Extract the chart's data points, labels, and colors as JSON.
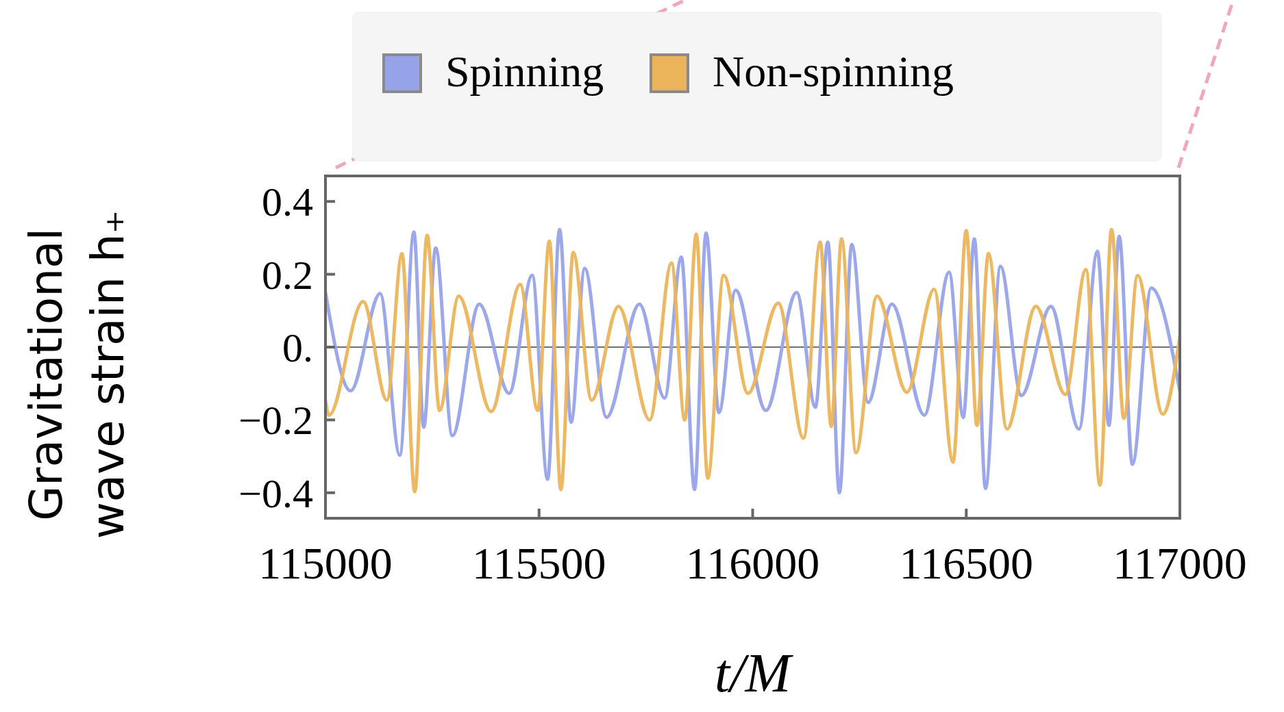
{
  "chart_data": {
    "type": "line",
    "xlabel": "t/M",
    "ylabel": "Gravitational wave strain h₊",
    "legend": "top",
    "grid": false,
    "marker": "none",
    "line_style": "solid",
    "xlim": [
      115000,
      117000
    ],
    "xticks": [
      115000,
      115500,
      116000,
      116500,
      117000
    ],
    "ylim": [
      -0.47,
      0.47
    ],
    "yticks": [
      {
        "value": -0.4,
        "label": "−0.4"
      },
      {
        "value": -0.2,
        "label": "−0.2"
      },
      {
        "value": 0,
        "label": "0."
      },
      0.2,
      0.4
    ],
    "ref_lines": [
      {
        "axis": "y",
        "value": 0,
        "color": "#707070"
      }
    ],
    "series": [
      {
        "name": "Spinning",
        "color": "#97a3e8",
        "x": [
          115000,
          115059,
          115128,
          115174,
          115207,
          115230,
          115258,
          115297,
          115360,
          115430,
          115484,
          115520,
          115548,
          115575,
          115607,
          115658,
          115735,
          115794,
          115833,
          115864,
          115891,
          115921,
          115960,
          116031,
          116103,
          116147,
          116176,
          116203,
          116232,
          116270,
          116326,
          116402,
          116460,
          116493,
          116519,
          116545,
          116580,
          116629,
          116698,
          116764,
          116807,
          116834,
          116858,
          116889,
          116933,
          117000
        ],
        "values": [
          0.15,
          -0.12,
          0.147,
          -0.297,
          0.316,
          -0.22,
          0.272,
          -0.243,
          0.118,
          -0.127,
          0.197,
          -0.363,
          0.323,
          -0.206,
          0.216,
          -0.193,
          0.118,
          -0.14,
          0.247,
          -0.391,
          0.313,
          -0.18,
          0.156,
          -0.174,
          0.15,
          -0.165,
          0.288,
          -0.4,
          0.282,
          -0.152,
          0.118,
          -0.187,
          0.206,
          -0.193,
          0.297,
          -0.388,
          0.222,
          -0.133,
          0.112,
          -0.225,
          0.263,
          -0.215,
          0.304,
          -0.322,
          0.162,
          -0.121
        ]
      },
      {
        "name": "Non-spinning",
        "color": "#ecb45a",
        "x": [
          115000,
          115008,
          115088,
          115144,
          115179,
          115209,
          115238,
          115267,
          115312,
          115388,
          115456,
          115497,
          115524,
          115551,
          115580,
          115623,
          115686,
          115759,
          115810,
          115841,
          115868,
          115895,
          115932,
          115989,
          116060,
          116119,
          116158,
          116184,
          116208,
          116242,
          116291,
          116361,
          116425,
          116469,
          116500,
          116525,
          116552,
          116595,
          116663,
          116732,
          116780,
          116813,
          116840,
          116869,
          116901,
          116960,
          117000
        ],
        "values": [
          -0.146,
          -0.187,
          0.125,
          -0.146,
          0.257,
          -0.397,
          0.307,
          -0.174,
          0.14,
          -0.177,
          0.172,
          -0.174,
          0.291,
          -0.391,
          0.26,
          -0.146,
          0.112,
          -0.2,
          0.231,
          -0.2,
          0.31,
          -0.36,
          0.197,
          -0.127,
          0.121,
          -0.25,
          0.288,
          -0.218,
          0.297,
          -0.29,
          0.14,
          -0.124,
          0.159,
          -0.316,
          0.32,
          -0.215,
          0.257,
          -0.225,
          0.112,
          -0.13,
          0.213,
          -0.379,
          0.323,
          -0.196,
          0.197,
          -0.184,
          0.03
        ]
      }
    ]
  }
}
